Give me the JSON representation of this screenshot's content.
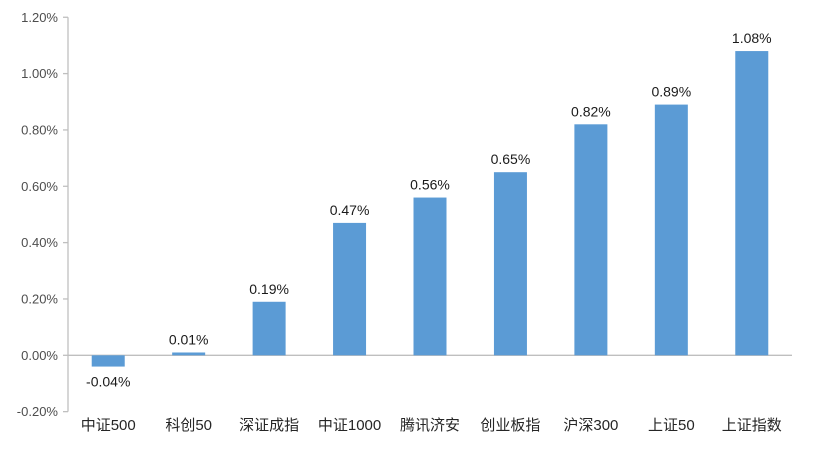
{
  "chart_data": {
    "type": "bar",
    "title": "",
    "xlabel": "",
    "ylabel": "",
    "categories": [
      "中证500",
      "科创50",
      "深证成指",
      "中证1000",
      "腾讯济安",
      "创业板指",
      "沪深300",
      "上证50",
      "上证指数"
    ],
    "values": [
      -0.04,
      0.01,
      0.19,
      0.47,
      0.56,
      0.65,
      0.82,
      0.89,
      1.08
    ],
    "data_labels": [
      "-0.04%",
      "0.01%",
      "0.19%",
      "0.47%",
      "0.56%",
      "0.65%",
      "0.82%",
      "0.89%",
      "1.08%"
    ],
    "ylim": [
      -0.2,
      1.2
    ],
    "ytick_step": 0.2,
    "ytick_labels": [
      "1.20%",
      "1.00%",
      "0.80%",
      "0.60%",
      "0.40%",
      "0.20%",
      "0.00%",
      "-0.20%"
    ],
    "ytick_values": [
      1.2,
      1.0,
      0.8,
      0.6,
      0.4,
      0.2,
      0.0,
      -0.2
    ],
    "grid": false,
    "legend": false,
    "colors": {
      "bar": "#5B9BD5",
      "axis_line": "#BFBFBF",
      "tick_label": "#4d4d4d",
      "data_label": "#1a1a1a",
      "category_label": "#262626",
      "background": "#ffffff"
    }
  }
}
